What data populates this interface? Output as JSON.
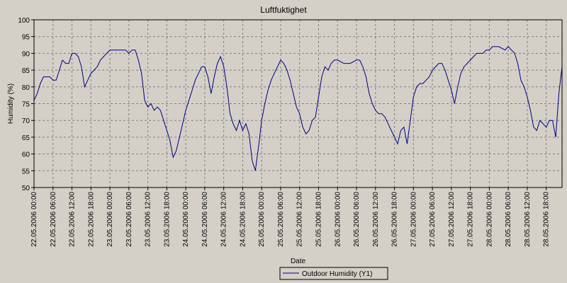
{
  "chart_data": {
    "type": "line",
    "title": "Luftfuktighet",
    "xlabel": "Date",
    "ylabel": "Humidity (%)",
    "ylim": [
      50,
      100
    ],
    "yticks": [
      50,
      55,
      60,
      65,
      70,
      75,
      80,
      85,
      90,
      95,
      100
    ],
    "xlim": [
      "22.05.2006 00:00",
      "28.05.2006 23:00"
    ],
    "xticks": [
      "22.05.2006 00:00",
      "22.05.2006 06:00",
      "22.05.2006 12:00",
      "22.05.2006 18:00",
      "23.05.2006 00:00",
      "23.05.2006 06:00",
      "23.05.2006 12:00",
      "23.05.2006 18:00",
      "24.05.2006 00:00",
      "24.05.2006 06:00",
      "24.05.2006 12:00",
      "24.05.2006 18:00",
      "25.05.2006 00:00",
      "25.05.2006 06:00",
      "25.05.2006 12:00",
      "25.05.2006 18:00",
      "26.05.2006 00:00",
      "26.05.2006 06:00",
      "26.05.2006 12:00",
      "26.05.2006 18:00",
      "27.05.2006 00:00",
      "27.05.2006 06:00",
      "27.05.2006 12:00",
      "27.05.2006 18:00",
      "28.05.2006 00:00",
      "28.05.2006 06:00",
      "28.05.2006 12:00",
      "28.05.2006 18:00"
    ],
    "grid": true,
    "legend_position": "bottom-center",
    "colors": {
      "background": "#d4d0c8",
      "plot": "#d4d0c8",
      "line": "#000080",
      "grid": "#808080"
    },
    "series": [
      {
        "name": "Outdoor Humidity (Y1)",
        "points": [
          [
            "22.05.2006 00:00",
            76
          ],
          [
            "22.05.2006 01:00",
            78
          ],
          [
            "22.05.2006 02:00",
            81
          ],
          [
            "22.05.2006 03:00",
            83
          ],
          [
            "22.05.2006 05:00",
            83
          ],
          [
            "22.05.2006 06:00",
            82
          ],
          [
            "22.05.2006 07:00",
            82
          ],
          [
            "22.05.2006 08:00",
            85
          ],
          [
            "22.05.2006 09:00",
            88
          ],
          [
            "22.05.2006 10:00",
            87
          ],
          [
            "22.05.2006 11:00",
            87
          ],
          [
            "22.05.2006 12:00",
            90
          ],
          [
            "22.05.2006 13:00",
            90
          ],
          [
            "22.05.2006 14:00",
            89
          ],
          [
            "22.05.2006 15:00",
            86
          ],
          [
            "22.05.2006 16:00",
            80
          ],
          [
            "22.05.2006 17:00",
            82
          ],
          [
            "22.05.2006 18:00",
            84
          ],
          [
            "22.05.2006 19:00",
            85
          ],
          [
            "22.05.2006 20:00",
            86
          ],
          [
            "22.05.2006 21:00",
            88
          ],
          [
            "22.05.2006 22:00",
            89
          ],
          [
            "22.05.2006 23:00",
            90
          ],
          [
            "23.05.2006 00:00",
            91
          ],
          [
            "23.05.2006 01:00",
            91
          ],
          [
            "23.05.2006 03:00",
            91
          ],
          [
            "23.05.2006 05:00",
            91
          ],
          [
            "23.05.2006 06:00",
            90
          ],
          [
            "23.05.2006 07:00",
            91
          ],
          [
            "23.05.2006 08:00",
            91
          ],
          [
            "23.05.2006 09:00",
            88
          ],
          [
            "23.05.2006 10:00",
            84
          ],
          [
            "23.05.2006 11:00",
            76
          ],
          [
            "23.05.2006 12:00",
            74
          ],
          [
            "23.05.2006 13:00",
            75
          ],
          [
            "23.05.2006 14:00",
            73
          ],
          [
            "23.05.2006 15:00",
            74
          ],
          [
            "23.05.2006 16:00",
            73
          ],
          [
            "23.05.2006 17:00",
            70
          ],
          [
            "23.05.2006 18:00",
            67
          ],
          [
            "23.05.2006 19:00",
            64
          ],
          [
            "23.05.2006 20:00",
            59
          ],
          [
            "23.05.2006 21:00",
            61
          ],
          [
            "23.05.2006 22:00",
            65
          ],
          [
            "23.05.2006 23:00",
            69
          ],
          [
            "24.05.2006 00:00",
            73
          ],
          [
            "24.05.2006 01:00",
            76
          ],
          [
            "24.05.2006 02:00",
            79
          ],
          [
            "24.05.2006 03:00",
            82
          ],
          [
            "24.05.2006 04:00",
            84
          ],
          [
            "24.05.2006 05:00",
            86
          ],
          [
            "24.05.2006 06:00",
            86
          ],
          [
            "24.05.2006 07:00",
            83
          ],
          [
            "24.05.2006 08:00",
            78
          ],
          [
            "24.05.2006 09:00",
            83
          ],
          [
            "24.05.2006 10:00",
            87
          ],
          [
            "24.05.2006 11:00",
            89
          ],
          [
            "24.05.2006 12:00",
            86
          ],
          [
            "24.05.2006 13:00",
            80
          ],
          [
            "24.05.2006 14:00",
            72
          ],
          [
            "24.05.2006 15:00",
            69
          ],
          [
            "24.05.2006 16:00",
            67
          ],
          [
            "24.05.2006 17:00",
            70
          ],
          [
            "24.05.2006 18:00",
            67
          ],
          [
            "24.05.2006 19:00",
            69
          ],
          [
            "24.05.2006 20:00",
            66
          ],
          [
            "24.05.2006 21:00",
            58
          ],
          [
            "24.05.2006 22:00",
            55
          ],
          [
            "24.05.2006 23:00",
            62
          ],
          [
            "25.05.2006 00:00",
            70
          ],
          [
            "25.05.2006 01:00",
            75
          ],
          [
            "25.05.2006 02:00",
            79
          ],
          [
            "25.05.2006 03:00",
            82
          ],
          [
            "25.05.2006 04:00",
            84
          ],
          [
            "25.05.2006 05:00",
            86
          ],
          [
            "25.05.2006 06:00",
            88
          ],
          [
            "25.05.2006 07:00",
            87
          ],
          [
            "25.05.2006 08:00",
            85
          ],
          [
            "25.05.2006 09:00",
            82
          ],
          [
            "25.05.2006 10:00",
            78
          ],
          [
            "25.05.2006 11:00",
            74
          ],
          [
            "25.05.2006 12:00",
            72
          ],
          [
            "25.05.2006 13:00",
            68
          ],
          [
            "25.05.2006 14:00",
            66
          ],
          [
            "25.05.2006 15:00",
            67
          ],
          [
            "25.05.2006 16:00",
            70
          ],
          [
            "25.05.2006 17:00",
            71
          ],
          [
            "25.05.2006 18:00",
            77
          ],
          [
            "25.05.2006 19:00",
            83
          ],
          [
            "25.05.2006 20:00",
            86
          ],
          [
            "25.05.2006 21:00",
            85
          ],
          [
            "25.05.2006 22:00",
            87
          ],
          [
            "25.05.2006 23:00",
            88
          ],
          [
            "26.05.2006 00:00",
            88
          ],
          [
            "26.05.2006 02:00",
            87
          ],
          [
            "26.05.2006 04:00",
            87
          ],
          [
            "26.05.2006 06:00",
            88
          ],
          [
            "26.05.2006 07:00",
            88
          ],
          [
            "26.05.2006 08:00",
            86
          ],
          [
            "26.05.2006 09:00",
            83
          ],
          [
            "26.05.2006 10:00",
            78
          ],
          [
            "26.05.2006 11:00",
            75
          ],
          [
            "26.05.2006 12:00",
            73
          ],
          [
            "26.05.2006 13:00",
            72
          ],
          [
            "26.05.2006 14:00",
            72
          ],
          [
            "26.05.2006 15:00",
            71
          ],
          [
            "26.05.2006 16:00",
            69
          ],
          [
            "26.05.2006 17:00",
            67
          ],
          [
            "26.05.2006 18:00",
            65
          ],
          [
            "26.05.2006 19:00",
            63
          ],
          [
            "26.05.2006 20:00",
            67
          ],
          [
            "26.05.2006 21:00",
            68
          ],
          [
            "26.05.2006 22:00",
            63
          ],
          [
            "26.05.2006 23:00",
            70
          ],
          [
            "27.05.2006 00:00",
            77
          ],
          [
            "27.05.2006 01:00",
            80
          ],
          [
            "27.05.2006 02:00",
            81
          ],
          [
            "27.05.2006 03:00",
            81
          ],
          [
            "27.05.2006 04:00",
            82
          ],
          [
            "27.05.2006 05:00",
            83
          ],
          [
            "27.05.2006 06:00",
            85
          ],
          [
            "27.05.2006 07:00",
            86
          ],
          [
            "27.05.2006 08:00",
            87
          ],
          [
            "27.05.2006 09:00",
            87
          ],
          [
            "27.05.2006 10:00",
            85
          ],
          [
            "27.05.2006 11:00",
            82
          ],
          [
            "27.05.2006 12:00",
            79
          ],
          [
            "27.05.2006 13:00",
            75
          ],
          [
            "27.05.2006 14:00",
            80
          ],
          [
            "27.05.2006 15:00",
            84
          ],
          [
            "27.05.2006 16:00",
            86
          ],
          [
            "27.05.2006 17:00",
            87
          ],
          [
            "27.05.2006 18:00",
            88
          ],
          [
            "27.05.2006 19:00",
            89
          ],
          [
            "27.05.2006 20:00",
            90
          ],
          [
            "27.05.2006 21:00",
            90
          ],
          [
            "27.05.2006 22:00",
            90
          ],
          [
            "27.05.2006 23:00",
            91
          ],
          [
            "28.05.2006 00:00",
            91
          ],
          [
            "28.05.2006 01:00",
            92
          ],
          [
            "28.05.2006 03:00",
            92
          ],
          [
            "28.05.2006 05:00",
            91
          ],
          [
            "28.05.2006 06:00",
            92
          ],
          [
            "28.05.2006 07:00",
            91
          ],
          [
            "28.05.2006 08:00",
            90
          ],
          [
            "28.05.2006 09:00",
            87
          ],
          [
            "28.05.2006 10:00",
            82
          ],
          [
            "28.05.2006 11:00",
            80
          ],
          [
            "28.05.2006 12:00",
            77
          ],
          [
            "28.05.2006 13:00",
            73
          ],
          [
            "28.05.2006 14:00",
            68
          ],
          [
            "28.05.2006 15:00",
            67
          ],
          [
            "28.05.2006 16:00",
            70
          ],
          [
            "28.05.2006 17:00",
            69
          ],
          [
            "28.05.2006 18:00",
            68
          ],
          [
            "28.05.2006 19:00",
            70
          ],
          [
            "28.05.2006 20:00",
            70
          ],
          [
            "28.05.2006 21:00",
            65
          ],
          [
            "28.05.2006 22:00",
            78
          ],
          [
            "28.05.2006 23:00",
            86
          ]
        ]
      }
    ]
  }
}
